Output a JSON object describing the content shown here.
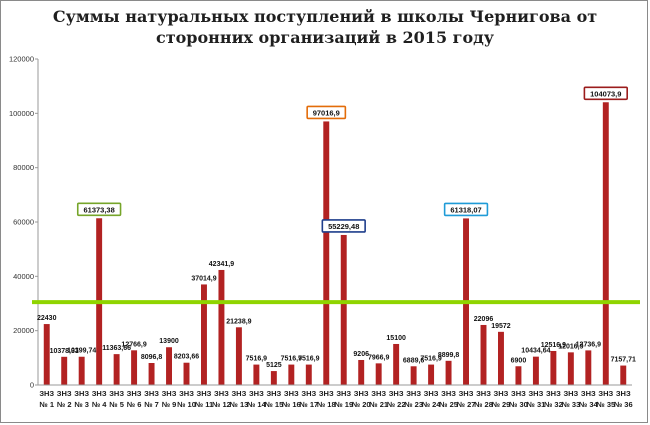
{
  "chart_data": {
    "type": "bar",
    "title": "Суммы натуральных поступлений в школы Чернигова от сторонних организаций в 2015 году",
    "xlabel": "",
    "ylabel": "",
    "ylim": [
      0,
      120000
    ],
    "yticks": [
      0,
      20000,
      40000,
      60000,
      80000,
      100000,
      120000
    ],
    "grid": false,
    "reference_line": {
      "value": 30500,
      "color": "#8fd400"
    },
    "bar_color": "#b22222",
    "categories": [
      "ЗНЗ № 1",
      "ЗНЗ № 2",
      "ЗНЗ № 3",
      "ЗНЗ № 4",
      "ЗНЗ № 5",
      "ЗНЗ № 6",
      "ЗНЗ № 7",
      "ЗНЗ № 9",
      "ЗНЗ № 10",
      "ЗНЗ № 11",
      "ЗНЗ № 12",
      "ЗНЗ № 13",
      "ЗНЗ № 14",
      "ЗНЗ № 15",
      "ЗНЗ № 16",
      "ЗНЗ № 17",
      "ЗНЗ № 18",
      "ЗНЗ № 19",
      "ЗНЗ № 20",
      "ЗНЗ № 21",
      "ЗНЗ № 22",
      "ЗНЗ № 23",
      "ЗНЗ № 24",
      "ЗНЗ № 25",
      "ЗНЗ № 27",
      "ЗНЗ № 28",
      "ЗНЗ № 29",
      "ЗНЗ № 30",
      "ЗНЗ № 31",
      "ЗНЗ № 32",
      "ЗНЗ № 33",
      "ЗНЗ № 34",
      "ЗНЗ № 35",
      "ЗНЗ № 36"
    ],
    "values": [
      22430,
      10378.31,
      10399.74,
      61373.38,
      11363.66,
      12766.9,
      8096.8,
      13900,
      8203.66,
      37014.9,
      42341.9,
      21238.9,
      7516.9,
      5125,
      7516.9,
      7516.9,
      97016.9,
      55229.48,
      9206,
      7966.9,
      15100,
      6889.6,
      7516.9,
      8899.8,
      61318.07,
      22096,
      19572,
      6900,
      10434.64,
      12516.9,
      12016.9,
      12736.9,
      104073.9,
      7157.71
    ],
    "data_labels": [
      "22430",
      "10378,31",
      "10399,74",
      "61373,38",
      "11363,66",
      "12766,9",
      "8096,8",
      "13900",
      "8203,66",
      "37014,9",
      "42341,9",
      "21238,9",
      "7516,9",
      "5125",
      "7516,9",
      "7516,9",
      "97016,9",
      "55229,48",
      "9206",
      "7966,9",
      "15100",
      "6889,6",
      "7516,9",
      "8899,8",
      "61318,07",
      "22096",
      "19572",
      "6900",
      "10434,64",
      "12516,9",
      "12016,9",
      "12736,9",
      "104073,9",
      "7157,71"
    ],
    "callouts": [
      {
        "index": 3,
        "color": "#76a52a"
      },
      {
        "index": 16,
        "color": "#e36c09"
      },
      {
        "index": 17,
        "color": "#1f3e8c"
      },
      {
        "index": 24,
        "color": "#1f9bd7"
      },
      {
        "index": 32,
        "color": "#9b1c1c"
      }
    ]
  }
}
